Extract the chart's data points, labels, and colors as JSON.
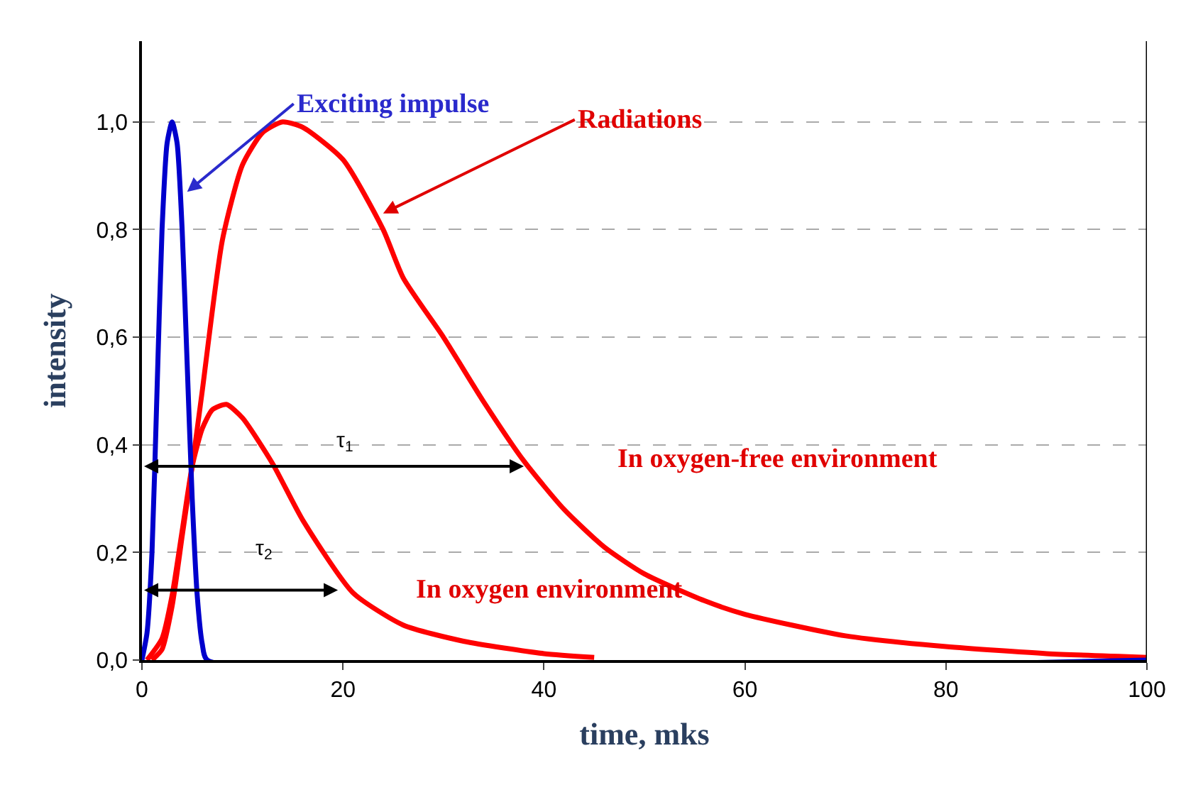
{
  "chart_data": {
    "type": "line",
    "xlabel": "time, mks",
    "ylabel": "intensity",
    "xlim": [
      0,
      100
    ],
    "xticks": [
      0,
      20,
      40,
      60,
      80,
      100
    ],
    "ylim": [
      0,
      1.15
    ],
    "yticks": [
      {
        "value": 0,
        "label": "0,0"
      },
      {
        "value": 0.2,
        "label": "0,2"
      },
      {
        "value": 0.4,
        "label": "0,4"
      },
      {
        "value": 0.6,
        "label": "0,6"
      },
      {
        "value": 0.8,
        "label": "0,8"
      },
      {
        "value": 1.0,
        "label": "1,0"
      }
    ],
    "grid": "y",
    "marker": "none",
    "line_style": "solid",
    "series": [
      {
        "color": "#ff0000",
        "x": [
          1,
          2,
          3,
          4,
          5,
          6,
          8,
          10,
          12,
          14,
          16,
          20,
          24,
          26,
          30,
          34,
          38,
          42,
          46,
          50,
          56,
          60,
          70,
          80,
          90,
          100
        ],
        "values": [
          0,
          0.02,
          0.1,
          0.23,
          0.36,
          0.5,
          0.78,
          0.92,
          0.98,
          1.0,
          0.99,
          0.93,
          0.8,
          0.71,
          0.6,
          0.48,
          0.37,
          0.28,
          0.21,
          0.16,
          0.11,
          0.085,
          0.045,
          0.025,
          0.012,
          0.005
        ]
      },
      {
        "color": "#ff0000",
        "x": [
          0.5,
          2,
          3,
          4,
          5,
          6,
          7,
          8.4,
          10,
          13,
          16,
          21,
          26,
          32,
          40,
          45
        ],
        "values": [
          0,
          0.04,
          0.12,
          0.24,
          0.36,
          0.43,
          0.465,
          0.475,
          0.45,
          0.365,
          0.26,
          0.125,
          0.065,
          0.035,
          0.012,
          0.005
        ]
      },
      {
        "color": "#0000cc",
        "x": [
          0,
          0.5,
          1,
          1.5,
          2,
          2.5,
          3,
          3.5,
          4,
          4.5,
          5,
          5.5,
          6,
          6.5,
          100
        ],
        "values": [
          0,
          0.05,
          0.2,
          0.5,
          0.8,
          0.96,
          1.0,
          0.96,
          0.8,
          0.55,
          0.3,
          0.12,
          0.03,
          0,
          0
        ]
      }
    ],
    "annotations": [
      {
        "text": "Exciting impulse",
        "x": 4.5,
        "y": 0.87
      },
      {
        "text": "Radiations",
        "x": 24,
        "y": 0.83
      },
      "τ$_{1}$",
      "τ$_{2}$",
      "In oxygen-free environment",
      "In oxygen environment"
    ]
  }
}
